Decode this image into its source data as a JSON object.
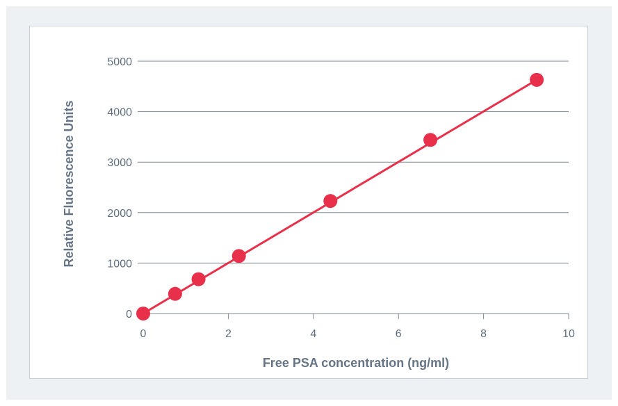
{
  "chart_data": {
    "type": "scatter",
    "title": "",
    "xlabel": "Free PSA concentration (ng/ml)",
    "ylabel": "Relative Fluorescence Units",
    "xlim": [
      0,
      10
    ],
    "ylim": [
      0,
      5000
    ],
    "x_ticks": [
      0,
      2,
      4,
      6,
      8,
      10
    ],
    "y_ticks": [
      0,
      1000,
      2000,
      3000,
      4000,
      5000
    ],
    "grid": "horizontal",
    "legend": "none",
    "series": [
      {
        "x": [
          0,
          0.75,
          1.3,
          2.25,
          4.4,
          6.75,
          9.25
        ],
        "y": [
          0,
          390,
          680,
          1140,
          2230,
          3440,
          4630
        ],
        "marker_color": "#e8304a"
      }
    ],
    "trendline": {
      "color": "#e8304a",
      "x": [
        0,
        9.25
      ],
      "y": [
        0,
        4630
      ]
    }
  }
}
